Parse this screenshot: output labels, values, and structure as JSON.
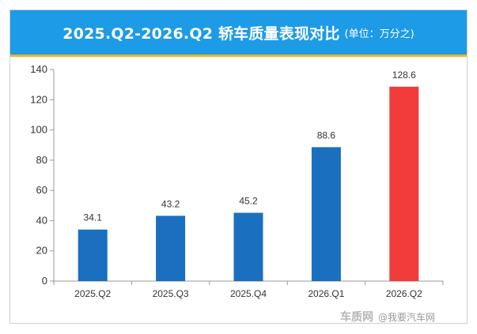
{
  "header": {
    "title": "2025.Q2-2026.Q2 轿车质量表现对比",
    "subtitle": "(单位：万分之)"
  },
  "watermark": {
    "logo": "车质网",
    "text": "@我要汽车网"
  },
  "colors": {
    "header_bg": "#1d9be6",
    "header_underline": "#f2b51a",
    "bar_default": "#1a6fbf",
    "bar_highlight": "#f23b3b"
  },
  "chart_data": {
    "type": "bar",
    "categories": [
      "2025.Q2",
      "2025.Q3",
      "2025.Q4",
      "2026.Q1",
      "2026.Q2"
    ],
    "values": [
      34.1,
      43.2,
      45.2,
      88.6,
      128.6
    ],
    "data_labels": [
      "34.1",
      "43.2",
      "45.2",
      "88.6",
      "128.6"
    ],
    "highlight_index": 4,
    "ylim": [
      0,
      140
    ],
    "yticks": [
      0,
      20,
      40,
      60,
      80,
      100,
      120,
      140
    ],
    "xlabel": "",
    "ylabel": "",
    "grid": false,
    "legend": "none"
  }
}
